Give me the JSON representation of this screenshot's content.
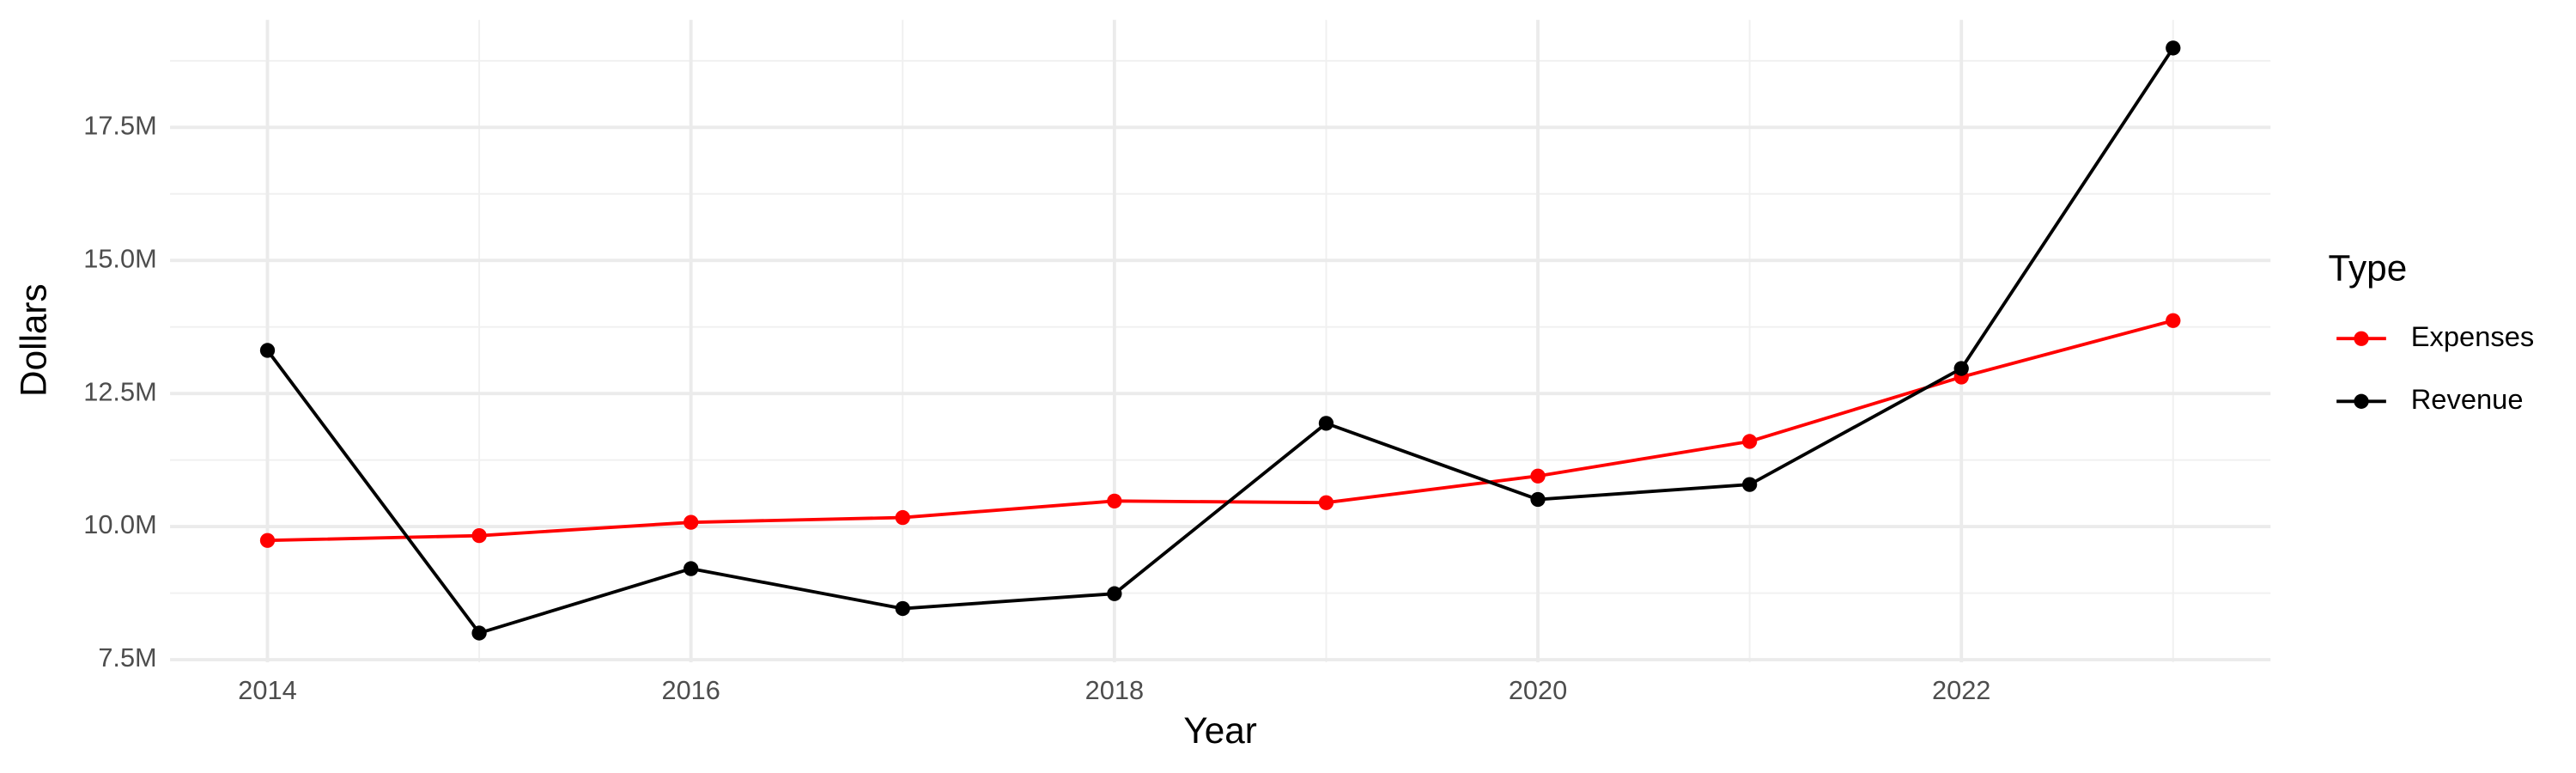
{
  "chart_data": {
    "type": "line",
    "x_label": "Year",
    "y_label": "Dollars",
    "legend_title": "Type",
    "legend_position": "right",
    "grid": true,
    "x": [
      2014,
      2015,
      2016,
      2017,
      2018,
      2019,
      2020,
      2021,
      2022,
      2023
    ],
    "series": [
      {
        "name": "Expenses",
        "color": "#ff0000",
        "values": [
          9740000,
          9830000,
          10080000,
          10170000,
          10480000,
          10450000,
          10950000,
          11600000,
          12810000,
          13870000
        ]
      },
      {
        "name": "Revenue",
        "color": "#000000",
        "values": [
          13310000,
          8000000,
          9210000,
          8460000,
          8740000,
          11940000,
          10510000,
          10790000,
          12970000,
          18990000
        ]
      }
    ],
    "xlim": [
      2013.54,
      2023.46
    ],
    "xticks": [
      2014,
      2016,
      2018,
      2020,
      2022
    ],
    "xminor": [
      2015,
      2017,
      2019,
      2021,
      2023
    ],
    "ylim": [
      7450000,
      19520000
    ],
    "yticks": [
      {
        "value": 7500000,
        "label": "7.5M"
      },
      {
        "value": 10000000,
        "label": "10.0M"
      },
      {
        "value": 12500000,
        "label": "12.5M"
      },
      {
        "value": 15000000,
        "label": "15.0M"
      },
      {
        "value": 17500000,
        "label": "17.5M"
      }
    ],
    "yminor": [
      8750000,
      11250000,
      13750000,
      16250000,
      18750000
    ]
  }
}
